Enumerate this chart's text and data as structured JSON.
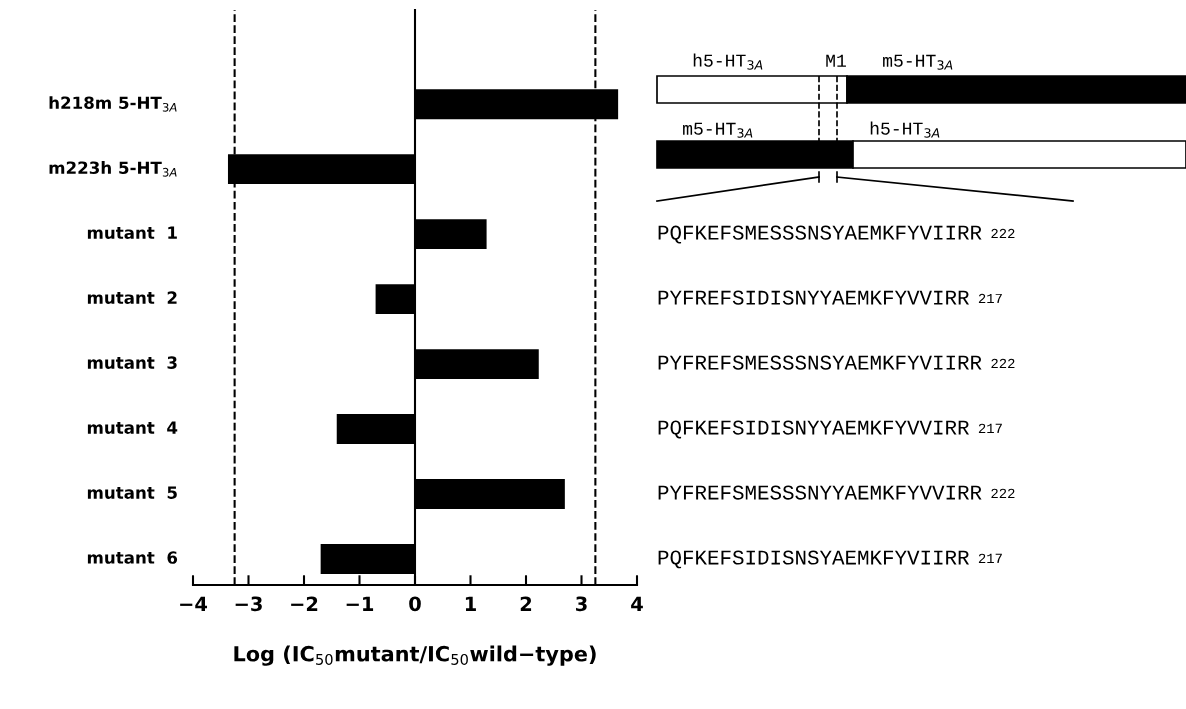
{
  "chart_data": {
    "type": "bar",
    "orientation": "horizontal",
    "categories": [
      "h218m 5-HT$_{3A}$",
      "m223h 5-HT$_{3A}$",
      "mutant  1",
      "mutant  2",
      "mutant  3",
      "mutant  4",
      "mutant  5",
      "mutant  6"
    ],
    "values": [
      3.66,
      -3.37,
      1.29,
      -0.71,
      2.23,
      -1.41,
      2.7,
      -1.7
    ],
    "color": "#000000",
    "xlabel": "Log (IC$_{50}$mutant/IC$_{50}$wild−type)",
    "xlim": [
      -4,
      4
    ],
    "xticks": [
      {
        "value": -4,
        "label": "−4"
      },
      {
        "value": -3,
        "label": "−3"
      },
      {
        "value": -2,
        "label": "−2"
      },
      {
        "value": -1,
        "label": "−1"
      },
      0,
      1,
      2,
      3,
      4
    ],
    "ref_lines": [
      {
        "axis": "x",
        "value": -3.25,
        "line_style": "dashed",
        "color": "#000000"
      },
      {
        "axis": "x",
        "value": 3.25,
        "line_style": "dashed",
        "color": "#000000"
      }
    ],
    "annotations": [
      "h5-HT$_{3A}$",
      "M1",
      "m5-HT$_{3A}$",
      "m5-HT$_{3A}$",
      "h5-HT$_{3A}$",
      "PQFKEFSMESSSNSYAEMKFYVIIRR 222",
      "PYFREFSIDISNYYAEMKFYVVIRR 217",
      "PYFREFSMESSSNSYAEMKFYVIIRR 222",
      "PQFKEFSIDISNYYAEMKFYVVIRR 217",
      "PYFREFSMESSSNYYAEMKFYVVIRR 222",
      "PQFKEFSIDISNSYAEMKFYVIIRR 217"
    ],
    "tick_labels": "x"
  }
}
